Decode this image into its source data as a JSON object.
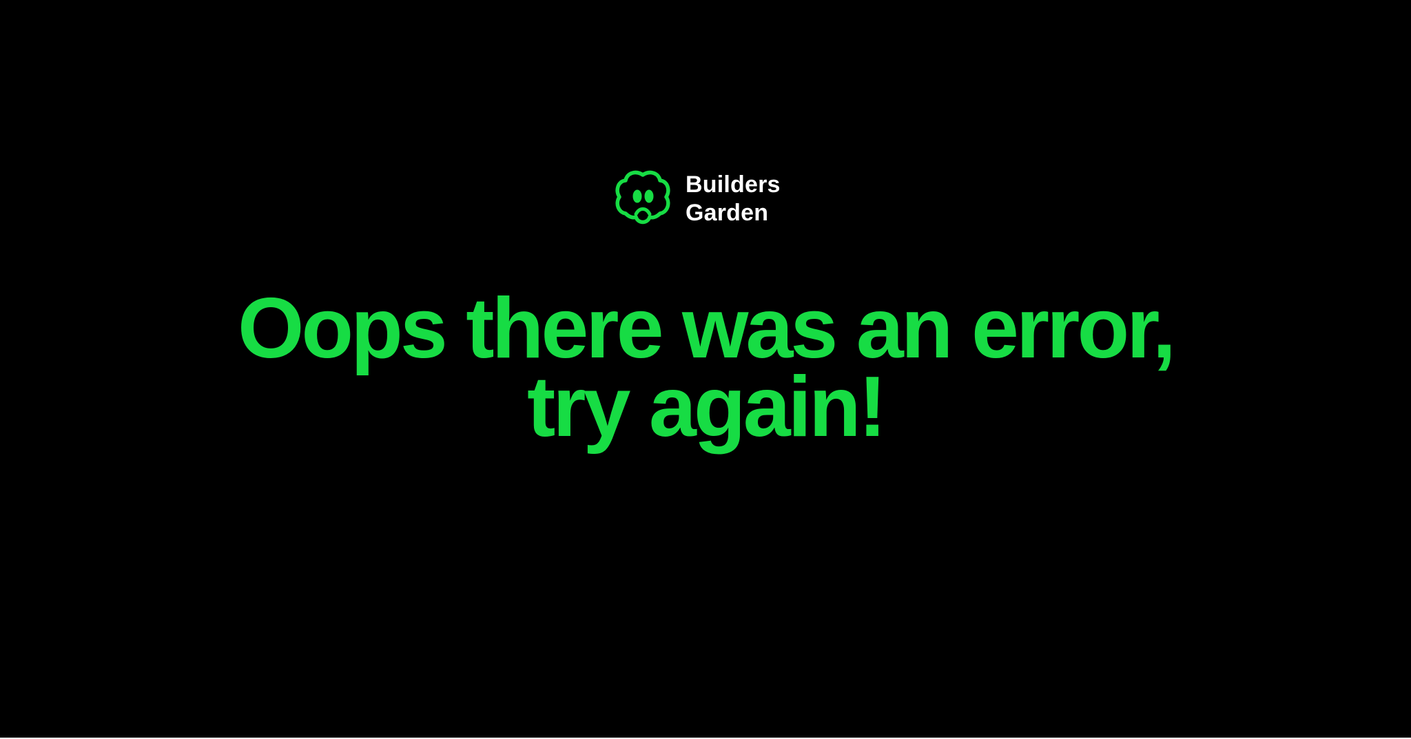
{
  "brand": {
    "name_line_1": "Builders",
    "name_line_2": "Garden",
    "logo_icon": "builders-garden-tree-face-icon",
    "accent_color": "#17dc44",
    "text_color": "#ffffff"
  },
  "error": {
    "line_1": "Oops there was an error,",
    "line_2": "try again!"
  },
  "page": {
    "background_color": "#000000"
  }
}
